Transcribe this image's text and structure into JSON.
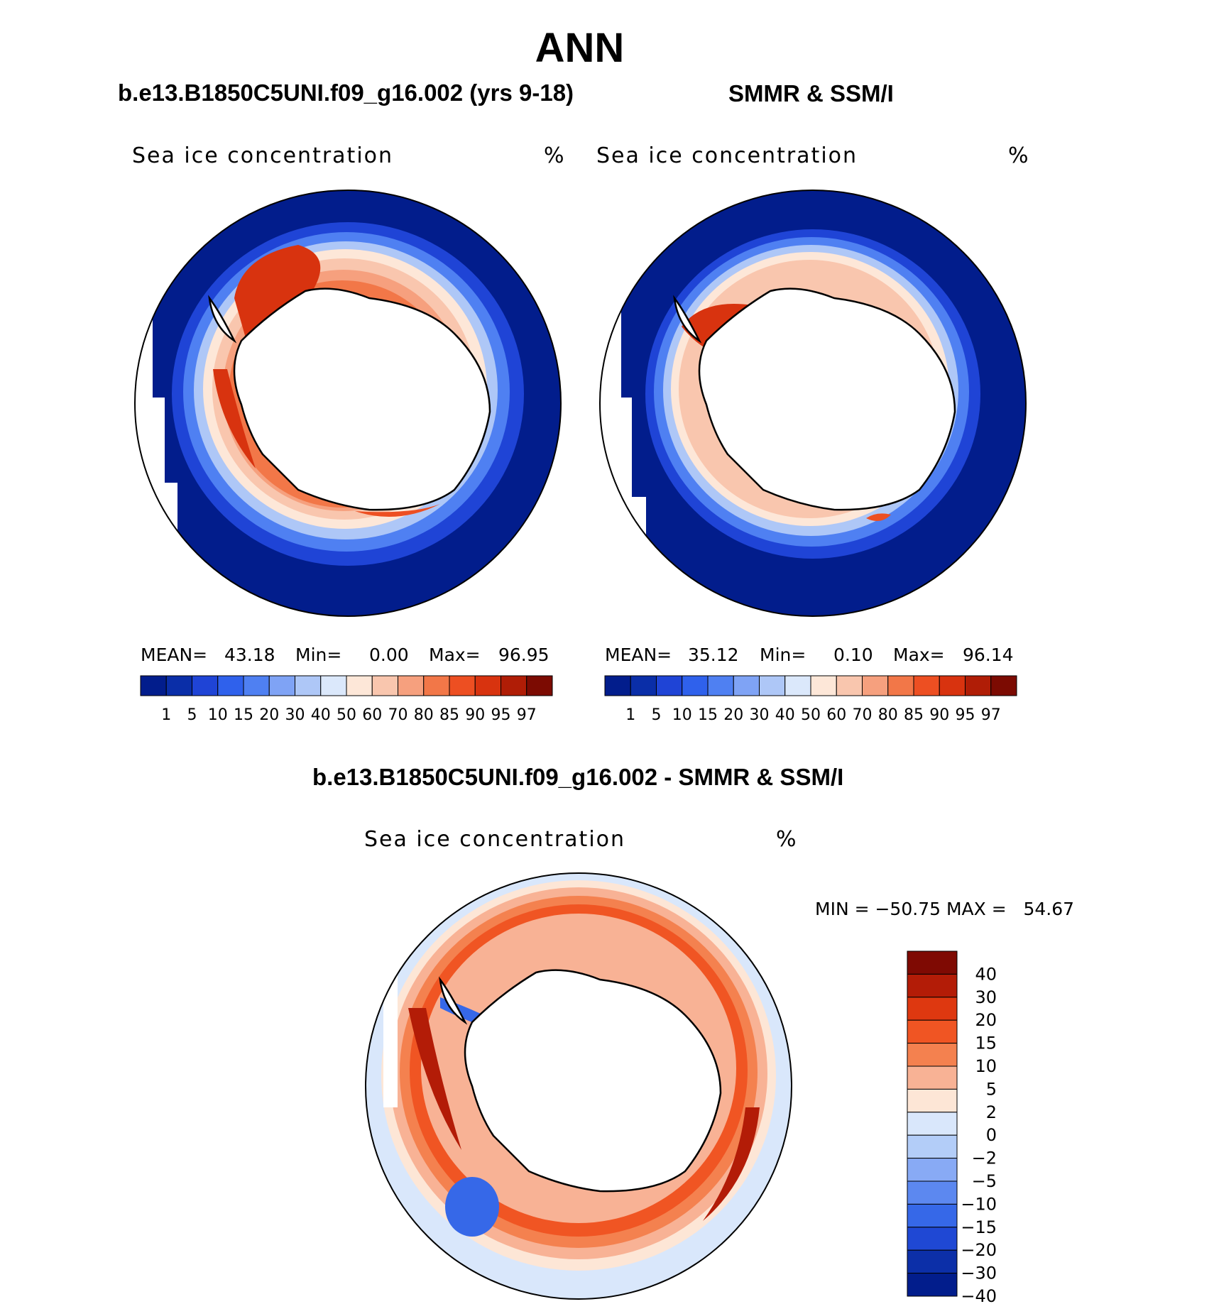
{
  "title": "ANN",
  "panels": [
    {
      "title": "b.e13.B1850C5UNI.f09_g16.002 (yrs 9-18)",
      "variable": "Sea ice concentration",
      "unit": "%",
      "stats": {
        "mean_label": "MEAN=",
        "mean": "43.18",
        "min_label": "Min=",
        "min": "0.00",
        "max_label": "Max=",
        "max": "96.95"
      }
    },
    {
      "title": "SMMR & SSM/I",
      "variable": "Sea ice concentration",
      "unit": "%",
      "stats": {
        "mean_label": "MEAN=",
        "mean": "35.12",
        "min_label": "Min=",
        "min": "0.10",
        "max_label": "Max=",
        "max": "96.14"
      }
    },
    {
      "title": "b.e13.B1850C5UNI.f09_g16.002 - SMMR & SSM/I",
      "variable": "Sea ice concentration",
      "unit": "%",
      "stats_text": "MIN = −50.75 MAX =   54.67"
    }
  ],
  "colorbar_conc": {
    "levels": [
      "1",
      "5",
      "10",
      "15",
      "20",
      "30",
      "40",
      "50",
      "60",
      "70",
      "80",
      "85",
      "90",
      "95",
      "97"
    ],
    "colors": [
      "#021d8c",
      "#0a2ea8",
      "#1f44d6",
      "#2f61ec",
      "#4f80f2",
      "#7fa3f5",
      "#aec7f7",
      "#dbe8fb",
      "#fde7d8",
      "#f9c6ae",
      "#f6a07e",
      "#f27748",
      "#ed4f22",
      "#d8330f",
      "#b01d06",
      "#7c0b02"
    ]
  },
  "colorbar_diff": {
    "levels": [
      "40",
      "30",
      "20",
      "15",
      "10",
      "5",
      "2",
      "0",
      "−2",
      "−5",
      "−10",
      "−15",
      "−20",
      "−30",
      "−40"
    ],
    "colors": [
      "#7f0a03",
      "#b31c07",
      "#de3810",
      "#f05523",
      "#f4814f",
      "#f8b295",
      "#fde6d6",
      "#d9e7fb",
      "#b3cdf8",
      "#88aaf5",
      "#5c88f0",
      "#3668e8",
      "#1f48d4",
      "#0c2fa8",
      "#021d8c"
    ]
  }
}
